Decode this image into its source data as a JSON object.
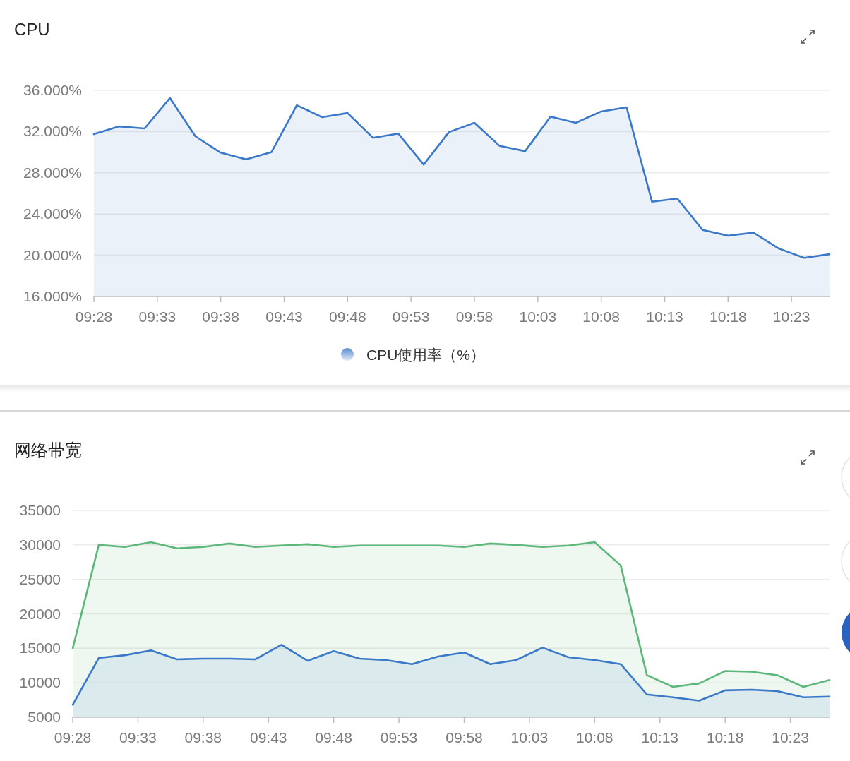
{
  "chart_data": [
    {
      "type": "area",
      "title": "CPU",
      "x": [
        9.4667,
        9.5,
        9.5333,
        9.5667,
        9.6,
        9.6333,
        9.6667,
        9.7,
        9.7333,
        9.7667,
        9.8,
        9.8333,
        9.8667,
        9.9,
        9.9333,
        9.9667,
        10.0,
        10.0333,
        10.0667,
        10.1,
        10.1333,
        10.1667,
        10.2,
        10.2333,
        10.2667,
        10.3,
        10.3333,
        10.3667,
        10.4,
        10.4333
      ],
      "series": [
        {
          "name": "CPU使用率（%）",
          "color": "#3a78c9",
          "values": [
            31.75,
            32.5,
            32.3,
            35.25,
            31.55,
            29.95,
            29.3,
            30.0,
            34.55,
            33.4,
            33.8,
            31.4,
            31.8,
            28.8,
            31.95,
            32.85,
            30.6,
            30.1,
            33.45,
            32.85,
            33.95,
            34.35,
            25.2,
            25.5,
            22.45,
            21.9,
            22.2,
            20.65,
            19.75,
            20.1
          ]
        }
      ],
      "xlim": [
        9.4667,
        10.4333
      ],
      "xticks": [
        {
          "value": 9.4667,
          "label": "09:28"
        },
        {
          "value": 9.55,
          "label": "09:33"
        },
        {
          "value": 9.6333,
          "label": "09:38"
        },
        {
          "value": 9.7167,
          "label": "09:43"
        },
        {
          "value": 9.8,
          "label": "09:48"
        },
        {
          "value": 9.8833,
          "label": "09:53"
        },
        {
          "value": 9.9667,
          "label": "09:58"
        },
        {
          "value": 10.05,
          "label": "10:03"
        },
        {
          "value": 10.1333,
          "label": "10:08"
        },
        {
          "value": 10.2167,
          "label": "10:13"
        },
        {
          "value": 10.3,
          "label": "10:18"
        },
        {
          "value": 10.3833,
          "label": "10:23"
        }
      ],
      "ylim": [
        16,
        36
      ],
      "yticks": [
        {
          "value": 16,
          "label": "16.000%"
        },
        {
          "value": 20,
          "label": "20.000%"
        },
        {
          "value": 24,
          "label": "24.000%"
        },
        {
          "value": 28,
          "label": "28.000%"
        },
        {
          "value": 32,
          "label": "32.000%"
        },
        {
          "value": 36,
          "label": "36.000%"
        }
      ],
      "grid": "y",
      "legend": "bottom"
    },
    {
      "type": "area",
      "title": "网络带宽",
      "x": [
        9.4667,
        9.5,
        9.5333,
        9.5667,
        9.6,
        9.6333,
        9.6667,
        9.7,
        9.7333,
        9.7667,
        9.8,
        9.8333,
        9.8667,
        9.9,
        9.9333,
        9.9667,
        10.0,
        10.0333,
        10.0667,
        10.1,
        10.1333,
        10.1667,
        10.2,
        10.2333,
        10.2667,
        10.3,
        10.3333,
        10.3667,
        10.4,
        10.4333
      ],
      "series": [
        {
          "color": "#5cb87a",
          "values": [
            15000,
            30000,
            29700,
            30400,
            29500,
            29700,
            30200,
            29700,
            29900,
            30100,
            29700,
            29900,
            29900,
            29900,
            29900,
            29700,
            30200,
            30000,
            29700,
            29900,
            30400,
            27000,
            11100,
            9400,
            9900,
            11700,
            11600,
            11100,
            9400,
            10400
          ]
        },
        {
          "color": "#3a78c9",
          "values": [
            6800,
            13600,
            14000,
            14700,
            13400,
            13500,
            13500,
            13400,
            15500,
            13200,
            14600,
            13500,
            13300,
            12700,
            13800,
            14400,
            12700,
            13300,
            15100,
            13700,
            13300,
            12700,
            8300,
            7900,
            7400,
            8900,
            9000,
            8800,
            7900,
            8000
          ]
        }
      ],
      "xlim": [
        9.4667,
        10.4333
      ],
      "xticks": [
        {
          "value": 9.4667,
          "label": "09:28"
        },
        {
          "value": 9.55,
          "label": "09:33"
        },
        {
          "value": 9.6333,
          "label": "09:38"
        },
        {
          "value": 9.7167,
          "label": "09:43"
        },
        {
          "value": 9.8,
          "label": "09:48"
        },
        {
          "value": 9.8833,
          "label": "09:53"
        },
        {
          "value": 9.9667,
          "label": "09:58"
        },
        {
          "value": 10.05,
          "label": "10:03"
        },
        {
          "value": 10.1333,
          "label": "10:08"
        },
        {
          "value": 10.2167,
          "label": "10:13"
        },
        {
          "value": 10.3,
          "label": "10:18"
        },
        {
          "value": 10.3833,
          "label": "10:23"
        }
      ],
      "ylim": [
        5000,
        35000
      ],
      "yticks": [
        5000,
        10000,
        15000,
        20000,
        25000,
        30000,
        35000
      ],
      "grid": "y"
    }
  ]
}
